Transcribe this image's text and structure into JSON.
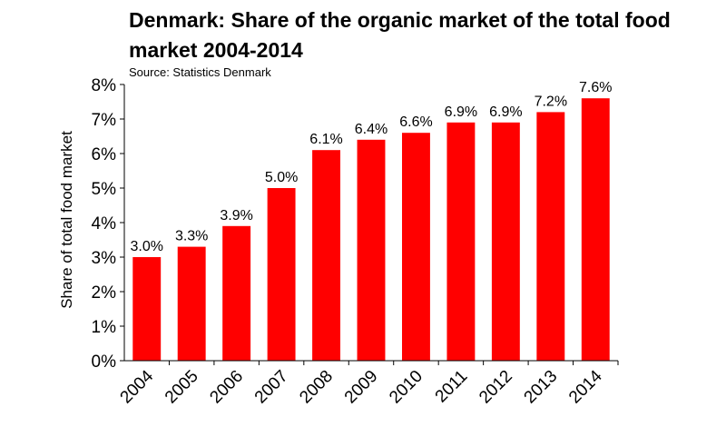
{
  "title": "Denmark: Share of the organic market of the total food market 2004-2014",
  "source": "Source: Statistics Denmark",
  "chart_data": {
    "type": "bar",
    "title": "Denmark: Share of the organic market of the total food market 2004-2014",
    "subtitle": "Source: Statistics Denmark",
    "xlabel": "",
    "ylabel": "Share of total food market",
    "categories": [
      "2004",
      "2005",
      "2006",
      "2007",
      "2008",
      "2009",
      "2010",
      "2011",
      "2012",
      "2013",
      "2014"
    ],
    "values": [
      3.0,
      3.3,
      3.9,
      5.0,
      6.1,
      6.4,
      6.6,
      6.9,
      6.9,
      7.2,
      7.6
    ],
    "data_labels": [
      "3.0%",
      "3.3%",
      "3.9%",
      "5.0%",
      "6.1%",
      "6.4%",
      "6.6%",
      "6.9%",
      "6.9%",
      "7.2%",
      "7.6%"
    ],
    "y_ticks": [
      "0%",
      "1%",
      "2%",
      "3%",
      "4%",
      "5%",
      "6%",
      "7%",
      "8%"
    ],
    "ylim": [
      0,
      8
    ],
    "grid": false,
    "legend": "none",
    "bar_color": "#ff0000"
  }
}
